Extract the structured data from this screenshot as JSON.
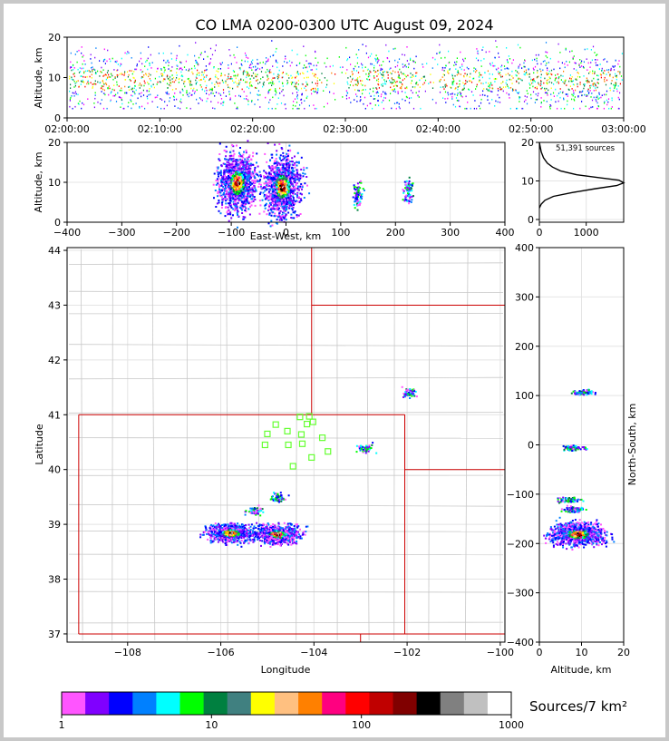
{
  "title": "CO LMA 0200-0300 UTC August 09, 2024",
  "source_count_label": "51,391 sources",
  "colorbar_label": "Sources/7 km²",
  "colors": {
    "palette": [
      "#ff55ff",
      "#8000ff",
      "#0000ff",
      "#0080ff",
      "#00ffff",
      "#00ff00",
      "#008040",
      "#408080",
      "#ffff00",
      "#ffc080",
      "#ff8000",
      "#ff0080",
      "#ff0000",
      "#c00000",
      "#800000",
      "#000000",
      "#808080",
      "#c0c0c0",
      "#ffffff"
    ],
    "state_border": "#cc0000",
    "county_border": "#c8c8c8",
    "station_marker": "#66ff33"
  },
  "chart_data": [
    {
      "id": "time-height",
      "type": "scatter",
      "xlabel": "",
      "ylabel": "Altitude, km",
      "xticks": [
        "02:00:00",
        "02:10:00",
        "02:20:00",
        "02:30:00",
        "02:40:00",
        "02:50:00",
        "03:00:00"
      ],
      "xlim_minutes": [
        0,
        60
      ],
      "yticks": [
        "0",
        "10",
        "20"
      ],
      "ylim": [
        0,
        20
      ]
    },
    {
      "id": "ew-height",
      "type": "heatmap",
      "xlabel": "East-West, km",
      "ylabel": "Altitude, km",
      "xticks": [
        "−400",
        "−300",
        "−200",
        "−100",
        "0",
        "100",
        "200",
        "300",
        "400"
      ],
      "xlim": [
        -400,
        400
      ],
      "yticks": [
        "0",
        "10",
        "20"
      ],
      "ylim": [
        0,
        20
      ],
      "clusters": [
        {
          "x": -90,
          "alt": 10,
          "strength": "high"
        },
        {
          "x": -8,
          "alt": 9,
          "strength": "high"
        },
        {
          "x": 130,
          "alt": 7,
          "strength": "low"
        },
        {
          "x": 222,
          "alt": 8,
          "strength": "low"
        }
      ]
    },
    {
      "id": "altitude-histogram",
      "type": "line",
      "xticks": [
        "0",
        "1000"
      ],
      "xlim": [
        0,
        1800
      ],
      "yticks": [
        "0",
        "10",
        "20"
      ],
      "ylim": [
        0,
        20
      ],
      "points": [
        [
          0,
          3
        ],
        [
          40,
          4
        ],
        [
          120,
          5
        ],
        [
          300,
          6
        ],
        [
          700,
          7
        ],
        [
          1200,
          8
        ],
        [
          1650,
          8.8
        ],
        [
          1800,
          9.5
        ],
        [
          1700,
          10.2
        ],
        [
          1300,
          10.8
        ],
        [
          800,
          11.6
        ],
        [
          450,
          12.6
        ],
        [
          280,
          13.6
        ],
        [
          170,
          14.6
        ],
        [
          90,
          16
        ],
        [
          40,
          17.5
        ],
        [
          15,
          19
        ],
        [
          0,
          20
        ]
      ]
    },
    {
      "id": "plan-view",
      "type": "heatmap",
      "xlabel": "Longitude",
      "ylabel": "Latitude",
      "xticks": [
        "−108",
        "−106",
        "−104",
        "−102",
        "−100"
      ],
      "xlim": [
        -109.3,
        -99.9
      ],
      "yticks": [
        "37",
        "38",
        "39",
        "40",
        "41",
        "42",
        "43",
        "44"
      ],
      "ylim": [
        36.85,
        44.05
      ],
      "clusters": [
        {
          "lon": -105.8,
          "lat": 38.85,
          "strength": "high"
        },
        {
          "lon": -104.8,
          "lat": 38.83,
          "strength": "high"
        },
        {
          "lon": -105.3,
          "lat": 39.25,
          "strength": "low"
        },
        {
          "lon": -104.8,
          "lat": 39.48,
          "strength": "low"
        },
        {
          "lon": -102.9,
          "lat": 40.4,
          "strength": "low"
        },
        {
          "lon": -101.95,
          "lat": 41.42,
          "strength": "low"
        }
      ],
      "stations": [
        [
          -104.3,
          40.96
        ],
        [
          -104.1,
          40.97
        ],
        [
          -104.15,
          40.83
        ],
        [
          -104.02,
          40.87
        ],
        [
          -104.82,
          40.82
        ],
        [
          -104.57,
          40.7
        ],
        [
          -104.27,
          40.64
        ],
        [
          -103.82,
          40.58
        ],
        [
          -105.0,
          40.65
        ],
        [
          -105.05,
          40.45
        ],
        [
          -104.55,
          40.45
        ],
        [
          -104.25,
          40.47
        ],
        [
          -103.7,
          40.33
        ],
        [
          -104.05,
          40.22
        ],
        [
          -104.45,
          40.06
        ]
      ]
    },
    {
      "id": "ns-height",
      "type": "heatmap",
      "xlabel": "Altitude, km",
      "ylabel": "North-South, km",
      "xticks": [
        "0",
        "10",
        "20"
      ],
      "xlim": [
        0,
        20
      ],
      "yticks": [
        "−400",
        "−300",
        "−200",
        "−100",
        "0",
        "100",
        "200",
        "300",
        "400"
      ],
      "ylim": [
        -400,
        400
      ],
      "clusters": [
        {
          "ns": -180,
          "alt": 9,
          "strength": "high"
        },
        {
          "ns": -110,
          "alt": 7,
          "strength": "low"
        },
        {
          "ns": -130,
          "alt": 8,
          "strength": "low"
        },
        {
          "ns": -5,
          "alt": 8,
          "strength": "low"
        },
        {
          "ns": 108,
          "alt": 10,
          "strength": "low"
        }
      ]
    },
    {
      "id": "colorbar",
      "type": "table",
      "tick_labels": [
        "1",
        "10",
        "100",
        "1000"
      ],
      "range": [
        1,
        1000
      ],
      "scale": "log"
    }
  ]
}
